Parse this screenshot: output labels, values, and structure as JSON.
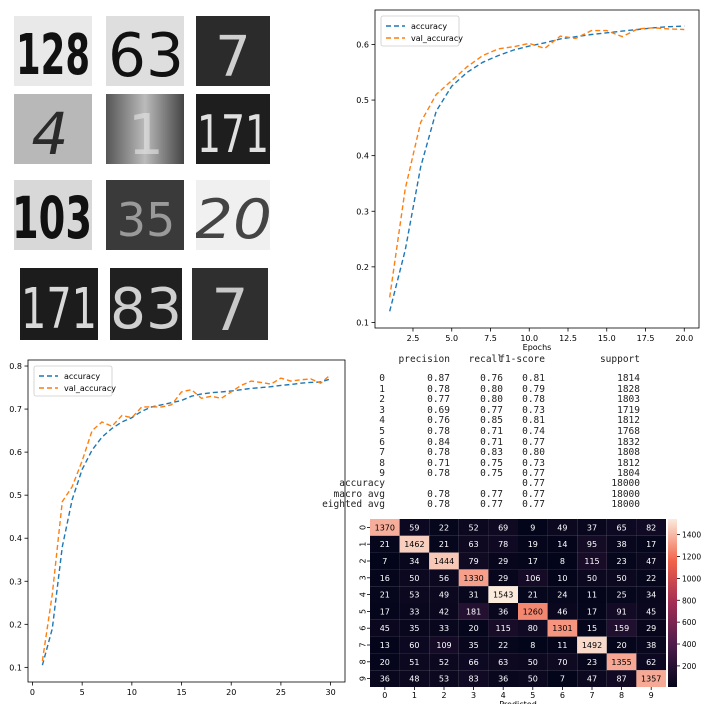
{
  "digit_samples": [
    "128",
    "63",
    "7",
    "4",
    "1",
    "171",
    "103",
    "35",
    "20",
    "171",
    "83",
    "7"
  ],
  "chart_data": [
    {
      "type": "line",
      "title": "",
      "xlabel": "Epochs",
      "ylabel": "",
      "xlim": [
        0.05,
        20.95
      ],
      "ylim": [
        0.09,
        0.662
      ],
      "xticks": [
        2.5,
        5.0,
        7.5,
        10.0,
        12.5,
        15.0,
        17.5,
        20.0
      ],
      "xtick_labels": [
        "2.5",
        "5.0",
        "7.5",
        "10.0",
        "12.5",
        "15.0",
        "17.5",
        "20.0"
      ],
      "yticks": [
        0.1,
        0.2,
        0.3,
        0.4,
        0.5,
        0.6
      ],
      "ytick_labels": [
        "0.1",
        "0.2",
        "0.3",
        "0.4",
        "0.5",
        "0.6"
      ],
      "legend": "top-left",
      "grid": false,
      "x": [
        1,
        2,
        3,
        4,
        5,
        6,
        7,
        8,
        9,
        10,
        11,
        12,
        13,
        14,
        15,
        16,
        17,
        18,
        19,
        20
      ],
      "series": [
        {
          "name": "accuracy",
          "color": "#1f77b4",
          "values": [
            0.12,
            0.23,
            0.38,
            0.48,
            0.525,
            0.55,
            0.568,
            0.58,
            0.59,
            0.597,
            0.603,
            0.61,
            0.614,
            0.618,
            0.621,
            0.624,
            0.627,
            0.63,
            0.632,
            0.633
          ]
        },
        {
          "name": "val_accuracy",
          "color": "#ff7f0e",
          "values": [
            0.145,
            0.34,
            0.46,
            0.51,
            0.535,
            0.56,
            0.58,
            0.592,
            0.596,
            0.602,
            0.593,
            0.615,
            0.611,
            0.625,
            0.625,
            0.614,
            0.628,
            0.63,
            0.628,
            0.627
          ]
        }
      ]
    },
    {
      "type": "line",
      "title": "",
      "xlabel": "",
      "ylabel": "",
      "xlim": [
        -0.45,
        31.45
      ],
      "ylim": [
        0.066,
        0.814
      ],
      "xticks": [
        0,
        5,
        10,
        15,
        20,
        25,
        30
      ],
      "xtick_labels": [
        "0",
        "5",
        "10",
        "15",
        "20",
        "25",
        "30"
      ],
      "yticks": [
        0.1,
        0.2,
        0.3,
        0.4,
        0.5,
        0.6,
        0.7,
        0.8
      ],
      "ytick_labels": [
        "0.1",
        "0.2",
        "0.3",
        "0.4",
        "0.5",
        "0.6",
        "0.7",
        "0.8"
      ],
      "legend": "top-left",
      "grid": false,
      "x": [
        1,
        2,
        3,
        4,
        5,
        6,
        7,
        8,
        9,
        10,
        11,
        12,
        13,
        14,
        15,
        16,
        17,
        18,
        19,
        20,
        21,
        22,
        23,
        24,
        25,
        26,
        27,
        28,
        29,
        30
      ],
      "series": [
        {
          "name": "accuracy",
          "color": "#1f77b4",
          "values": [
            0.105,
            0.19,
            0.38,
            0.49,
            0.56,
            0.605,
            0.635,
            0.655,
            0.67,
            0.68,
            0.695,
            0.705,
            0.71,
            0.715,
            0.72,
            0.73,
            0.735,
            0.738,
            0.74,
            0.742,
            0.745,
            0.748,
            0.75,
            0.752,
            0.755,
            0.757,
            0.76,
            0.762,
            0.763,
            0.77
          ]
        },
        {
          "name": "val_accuracy",
          "color": "#ff7f0e",
          "values": [
            0.115,
            0.27,
            0.485,
            0.52,
            0.58,
            0.65,
            0.67,
            0.66,
            0.685,
            0.68,
            0.705,
            0.705,
            0.705,
            0.71,
            0.74,
            0.745,
            0.725,
            0.73,
            0.725,
            0.74,
            0.755,
            0.765,
            0.762,
            0.758,
            0.772,
            0.765,
            0.768,
            0.77,
            0.76,
            0.78
          ]
        }
      ]
    },
    {
      "type": "table",
      "columns": [
        "precision",
        "recall",
        "f1-score",
        "support"
      ],
      "rows": [
        {
          "label": "0",
          "values": [
            "0.87",
            "0.76",
            "0.81",
            "1814"
          ]
        },
        {
          "label": "1",
          "values": [
            "0.78",
            "0.80",
            "0.79",
            "1828"
          ]
        },
        {
          "label": "2",
          "values": [
            "0.77",
            "0.80",
            "0.78",
            "1803"
          ]
        },
        {
          "label": "3",
          "values": [
            "0.69",
            "0.77",
            "0.73",
            "1719"
          ]
        },
        {
          "label": "4",
          "values": [
            "0.76",
            "0.85",
            "0.81",
            "1812"
          ]
        },
        {
          "label": "5",
          "values": [
            "0.78",
            "0.71",
            "0.74",
            "1768"
          ]
        },
        {
          "label": "6",
          "values": [
            "0.84",
            "0.71",
            "0.77",
            "1832"
          ]
        },
        {
          "label": "7",
          "values": [
            "0.78",
            "0.83",
            "0.80",
            "1808"
          ]
        },
        {
          "label": "8",
          "values": [
            "0.71",
            "0.75",
            "0.73",
            "1812"
          ]
        },
        {
          "label": "9",
          "values": [
            "0.78",
            "0.75",
            "0.77",
            "1804"
          ]
        }
      ],
      "summary": [
        {
          "label": "accuracy",
          "values": [
            "",
            "",
            "0.77",
            "18000"
          ]
        },
        {
          "label": "macro avg",
          "values": [
            "0.78",
            "0.77",
            "0.77",
            "18000"
          ]
        },
        {
          "label": "eighted avg",
          "values": [
            "0.78",
            "0.77",
            "0.77",
            "18000"
          ]
        }
      ]
    },
    {
      "type": "heatmap",
      "xlabel": "Predicted",
      "ylabel": "",
      "labels": [
        "0",
        "1",
        "2",
        "3",
        "4",
        "5",
        "6",
        "7",
        "8",
        "9"
      ],
      "colorbar_ticks": [
        200,
        400,
        600,
        800,
        1000,
        1200,
        1400
      ],
      "colorbar_tick_labels": [
        "200",
        "400",
        "600",
        "800",
        "1000",
        "1200",
        "1400"
      ],
      "vmin": 7,
      "vmax": 1543,
      "matrix": [
        [
          1370,
          59,
          22,
          52,
          69,
          9,
          49,
          37,
          65,
          82
        ],
        [
          21,
          1462,
          21,
          63,
          78,
          19,
          14,
          95,
          38,
          17
        ],
        [
          7,
          34,
          1444,
          79,
          29,
          17,
          8,
          115,
          23,
          47
        ],
        [
          16,
          50,
          56,
          1330,
          29,
          106,
          10,
          50,
          50,
          22
        ],
        [
          21,
          53,
          49,
          31,
          1543,
          21,
          24,
          11,
          25,
          34
        ],
        [
          17,
          33,
          42,
          181,
          36,
          1260,
          46,
          17,
          91,
          45
        ],
        [
          45,
          35,
          33,
          20,
          115,
          80,
          1301,
          15,
          159,
          29
        ],
        [
          13,
          60,
          109,
          35,
          22,
          8,
          11,
          1492,
          20,
          38
        ],
        [
          20,
          51,
          52,
          66,
          63,
          50,
          70,
          23,
          1355,
          62
        ],
        [
          36,
          48,
          53,
          83,
          36,
          50,
          7,
          47,
          87,
          1357
        ]
      ]
    }
  ]
}
